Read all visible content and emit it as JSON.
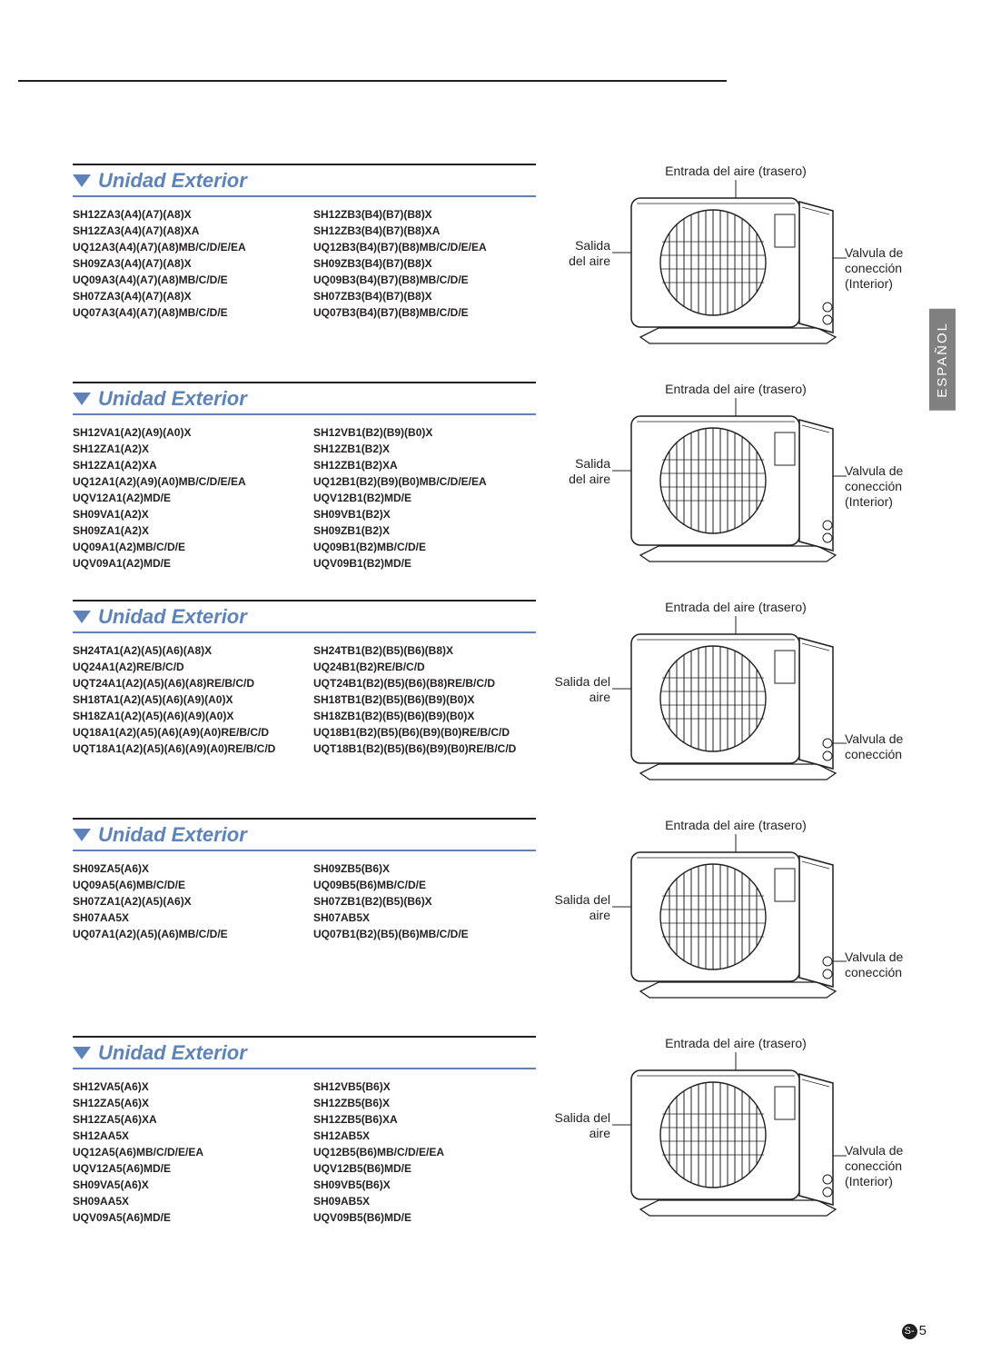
{
  "side_tab": "ESPAÑOL",
  "page_prefix": "S-",
  "page_number": "5",
  "labels": {
    "air_inlet": "Entrada del aire (trasero)",
    "air_outlet": "Salida del aire",
    "air_outlet_2l_a": "Salida",
    "air_outlet_2l_b": "del aire",
    "valve": "Valvula de conección (Interior)",
    "valve_short": "Valvula de conección"
  },
  "section_title": "Unidad Exterior",
  "sections": [
    {
      "left_label_style": "two-line",
      "right_label": "valve",
      "right_pos": "high",
      "col_a": [
        "SH12ZA3(A4)(A7)(A8)X",
        "SH12ZA3(A4)(A7)(A8)XA",
        "UQ12A3(A4)(A7)(A8)MB/C/D/E/EA",
        "SH09ZA3(A4)(A7)(A8)X",
        "UQ09A3(A4)(A7)(A8)MB/C/D/E",
        "SH07ZA3(A4)(A7)(A8)X",
        "UQ07A3(A4)(A7)(A8)MB/C/D/E"
      ],
      "col_b": [
        "SH12ZB3(B4)(B7)(B8)X",
        "SH12ZB3(B4)(B7)(B8)XA",
        "UQ12B3(B4)(B7)(B8)MB/C/D/E/EA",
        "SH09ZB3(B4)(B7)(B8)X",
        "UQ09B3(B4)(B7)(B8)MB/C/D/E",
        "SH07ZB3(B4)(B7)(B8)X",
        "UQ07B3(B4)(B7)(B8)MB/C/D/E"
      ]
    },
    {
      "left_label_style": "two-line",
      "right_label": "valve",
      "right_pos": "high",
      "col_a": [
        "SH12VA1(A2)(A9)(A0)X",
        "SH12ZA1(A2)X",
        "SH12ZA1(A2)XA",
        "UQ12A1(A2)(A9)(A0)MB/C/D/E/EA",
        "UQV12A1(A2)MD/E",
        "SH09VA1(A2)X",
        "SH09ZA1(A2)X",
        "UQ09A1(A2)MB/C/D/E",
        "UQV09A1(A2)MD/E"
      ],
      "col_b": [
        "SH12VB1(B2)(B9)(B0)X",
        "SH12ZB1(B2)X",
        "SH12ZB1(B2)XA",
        "UQ12B1(B2)(B9)(B0)MB/C/D/E/EA",
        "UQV12B1(B2)MD/E",
        "SH09VB1(B2)X",
        "SH09ZB1(B2)X",
        "UQ09B1(B2)MB/C/D/E",
        "UQV09B1(B2)MD/E"
      ]
    },
    {
      "left_label_style": "one-line",
      "right_label": "valve_short",
      "right_pos": "low",
      "col_a": [
        "SH24TA1(A2)(A5)(A6)(A8)X",
        "UQ24A1(A2)RE/B/C/D",
        "UQT24A1(A2)(A5)(A6)(A8)RE/B/C/D",
        "SH18TA1(A2)(A5)(A6)(A9)(A0)X",
        "SH18ZA1(A2)(A5)(A6)(A9)(A0)X",
        "UQ18A1(A2)(A5)(A6)(A9)(A0)RE/B/C/D",
        "UQT18A1(A2)(A5)(A6)(A9)(A0)RE/B/C/D"
      ],
      "col_b": [
        "SH24TB1(B2)(B5)(B6)(B8)X",
        "UQ24B1(B2)RE/B/C/D",
        "UQT24B1(B2)(B5)(B6)(B8)RE/B/C/D",
        "SH18TB1(B2)(B5)(B6)(B9)(B0)X",
        "SH18ZB1(B2)(B5)(B6)(B9)(B0)X",
        "UQ18B1(B2)(B5)(B6)(B9)(B0)RE/B/C/D",
        "UQT18B1(B2)(B5)(B6)(B9)(B0)RE/B/C/D"
      ]
    },
    {
      "left_label_style": "one-line",
      "right_label": "valve_short",
      "right_pos": "low",
      "col_a": [
        "SH09ZA5(A6)X",
        "UQ09A5(A6)MB/C/D/E",
        "SH07ZA1(A2)(A5)(A6)X",
        "SH07AA5X",
        "UQ07A1(A2)(A5)(A6)MB/C/D/E"
      ],
      "col_b": [
        "SH09ZB5(B6)X",
        "UQ09B5(B6)MB/C/D/E",
        "SH07ZB1(B2)(B5)(B6)X",
        "SH07AB5X",
        "UQ07B1(B2)(B5)(B6)MB/C/D/E"
      ]
    },
    {
      "left_label_style": "one-line",
      "right_label": "valve",
      "right_pos": "mid",
      "col_a": [
        "SH12VA5(A6)X",
        "SH12ZA5(A6)X",
        "SH12ZA5(A6)XA",
        "SH12AA5X",
        "UQ12A5(A6)MB/C/D/E/EA",
        "UQV12A5(A6)MD/E",
        "SH09VA5(A6)X",
        "SH09AA5X",
        "UQV09A5(A6)MD/E"
      ],
      "col_b": [
        "SH12VB5(B6)X",
        "SH12ZB5(B6)X",
        "SH12ZB5(B6)XA",
        "SH12AB5X",
        "UQ12B5(B6)MB/C/D/E/EA",
        "UQV12B5(B6)MD/E",
        "SH09VB5(B6)X",
        "SH09AB5X",
        "UQV09B5(B6)MD/E"
      ]
    }
  ]
}
